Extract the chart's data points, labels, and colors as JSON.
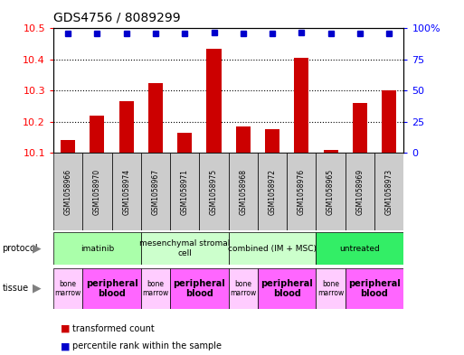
{
  "title": "GDS4756 / 8089299",
  "samples": [
    "GSM1058966",
    "GSM1058970",
    "GSM1058974",
    "GSM1058967",
    "GSM1058971",
    "GSM1058975",
    "GSM1058968",
    "GSM1058972",
    "GSM1058976",
    "GSM1058965",
    "GSM1058969",
    "GSM1058973"
  ],
  "bar_values": [
    10.14,
    10.22,
    10.265,
    10.325,
    10.165,
    10.435,
    10.185,
    10.175,
    10.405,
    10.11,
    10.26,
    10.3
  ],
  "percentile_values": [
    96,
    96,
    96,
    96,
    96,
    97,
    96,
    96,
    97,
    96,
    96,
    96
  ],
  "ylim_left": [
    10.1,
    10.5
  ],
  "ylim_right": [
    0,
    100
  ],
  "yticks_left": [
    10.1,
    10.2,
    10.3,
    10.4,
    10.5
  ],
  "yticks_right": [
    0,
    25,
    50,
    75,
    100
  ],
  "ytick_labels_right": [
    "0",
    "25",
    "50",
    "75",
    "100%"
  ],
  "bar_color": "#cc0000",
  "percentile_color": "#0000cc",
  "bar_bottom": 10.1,
  "protocols": [
    {
      "label": "imatinib",
      "start": 0,
      "end": 3,
      "color": "#aaffaa"
    },
    {
      "label": "mesenchymal stromal\ncell",
      "start": 3,
      "end": 6,
      "color": "#ccffcc"
    },
    {
      "label": "combined (IM + MSC)",
      "start": 6,
      "end": 9,
      "color": "#ccffcc"
    },
    {
      "label": "untreated",
      "start": 9,
      "end": 12,
      "color": "#33ee66"
    }
  ],
  "tissues": [
    {
      "label": "bone\nmarrow",
      "start": 0,
      "end": 1,
      "color": "#ffccff"
    },
    {
      "label": "peripheral\nblood",
      "start": 1,
      "end": 3,
      "color": "#ff66ff"
    },
    {
      "label": "bone\nmarrow",
      "start": 3,
      "end": 4,
      "color": "#ffccff"
    },
    {
      "label": "peripheral\nblood",
      "start": 4,
      "end": 6,
      "color": "#ff66ff"
    },
    {
      "label": "bone\nmarrow",
      "start": 6,
      "end": 7,
      "color": "#ffccff"
    },
    {
      "label": "peripheral\nblood",
      "start": 7,
      "end": 9,
      "color": "#ff66ff"
    },
    {
      "label": "bone\nmarrow",
      "start": 9,
      "end": 10,
      "color": "#ffccff"
    },
    {
      "label": "peripheral\nblood",
      "start": 10,
      "end": 12,
      "color": "#ff66ff"
    }
  ],
  "legend_items": [
    {
      "label": "transformed count",
      "color": "#cc0000"
    },
    {
      "label": "percentile rank within the sample",
      "color": "#0000cc"
    }
  ],
  "sample_box_color": "#cccccc",
  "fig_width": 5.13,
  "fig_height": 3.93,
  "dpi": 100
}
